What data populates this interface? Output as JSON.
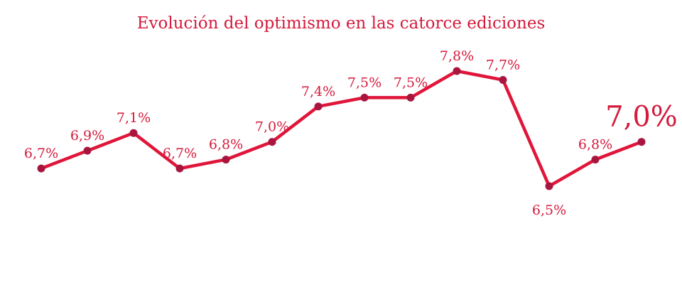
{
  "colors": {
    "line": "#e0153a",
    "point": "#a8163f",
    "text": "#d41a3c"
  },
  "chart_data": {
    "type": "line",
    "title": "Evolución del optimismo en las catorce ediciones",
    "xlabel": "",
    "ylabel": "",
    "grid": false,
    "legend": "none",
    "ylim": [
      5.8,
      8.3
    ],
    "series": [
      {
        "values": [
          6.7,
          6.9,
          7.1,
          6.7,
          6.8,
          7.0,
          7.4,
          7.5,
          7.5,
          7.8,
          7.7,
          6.5,
          6.8,
          7.0
        ],
        "labels": [
          "6,7%",
          "6,9%",
          "7,1%",
          "6,7%",
          "6,8%",
          "7,0%",
          "7,4%",
          "7,5%",
          "7,5%",
          "7,8%",
          "7,7%",
          "6,5%",
          "6,8%",
          "7,0%"
        ],
        "highlight_last": true
      }
    ]
  }
}
